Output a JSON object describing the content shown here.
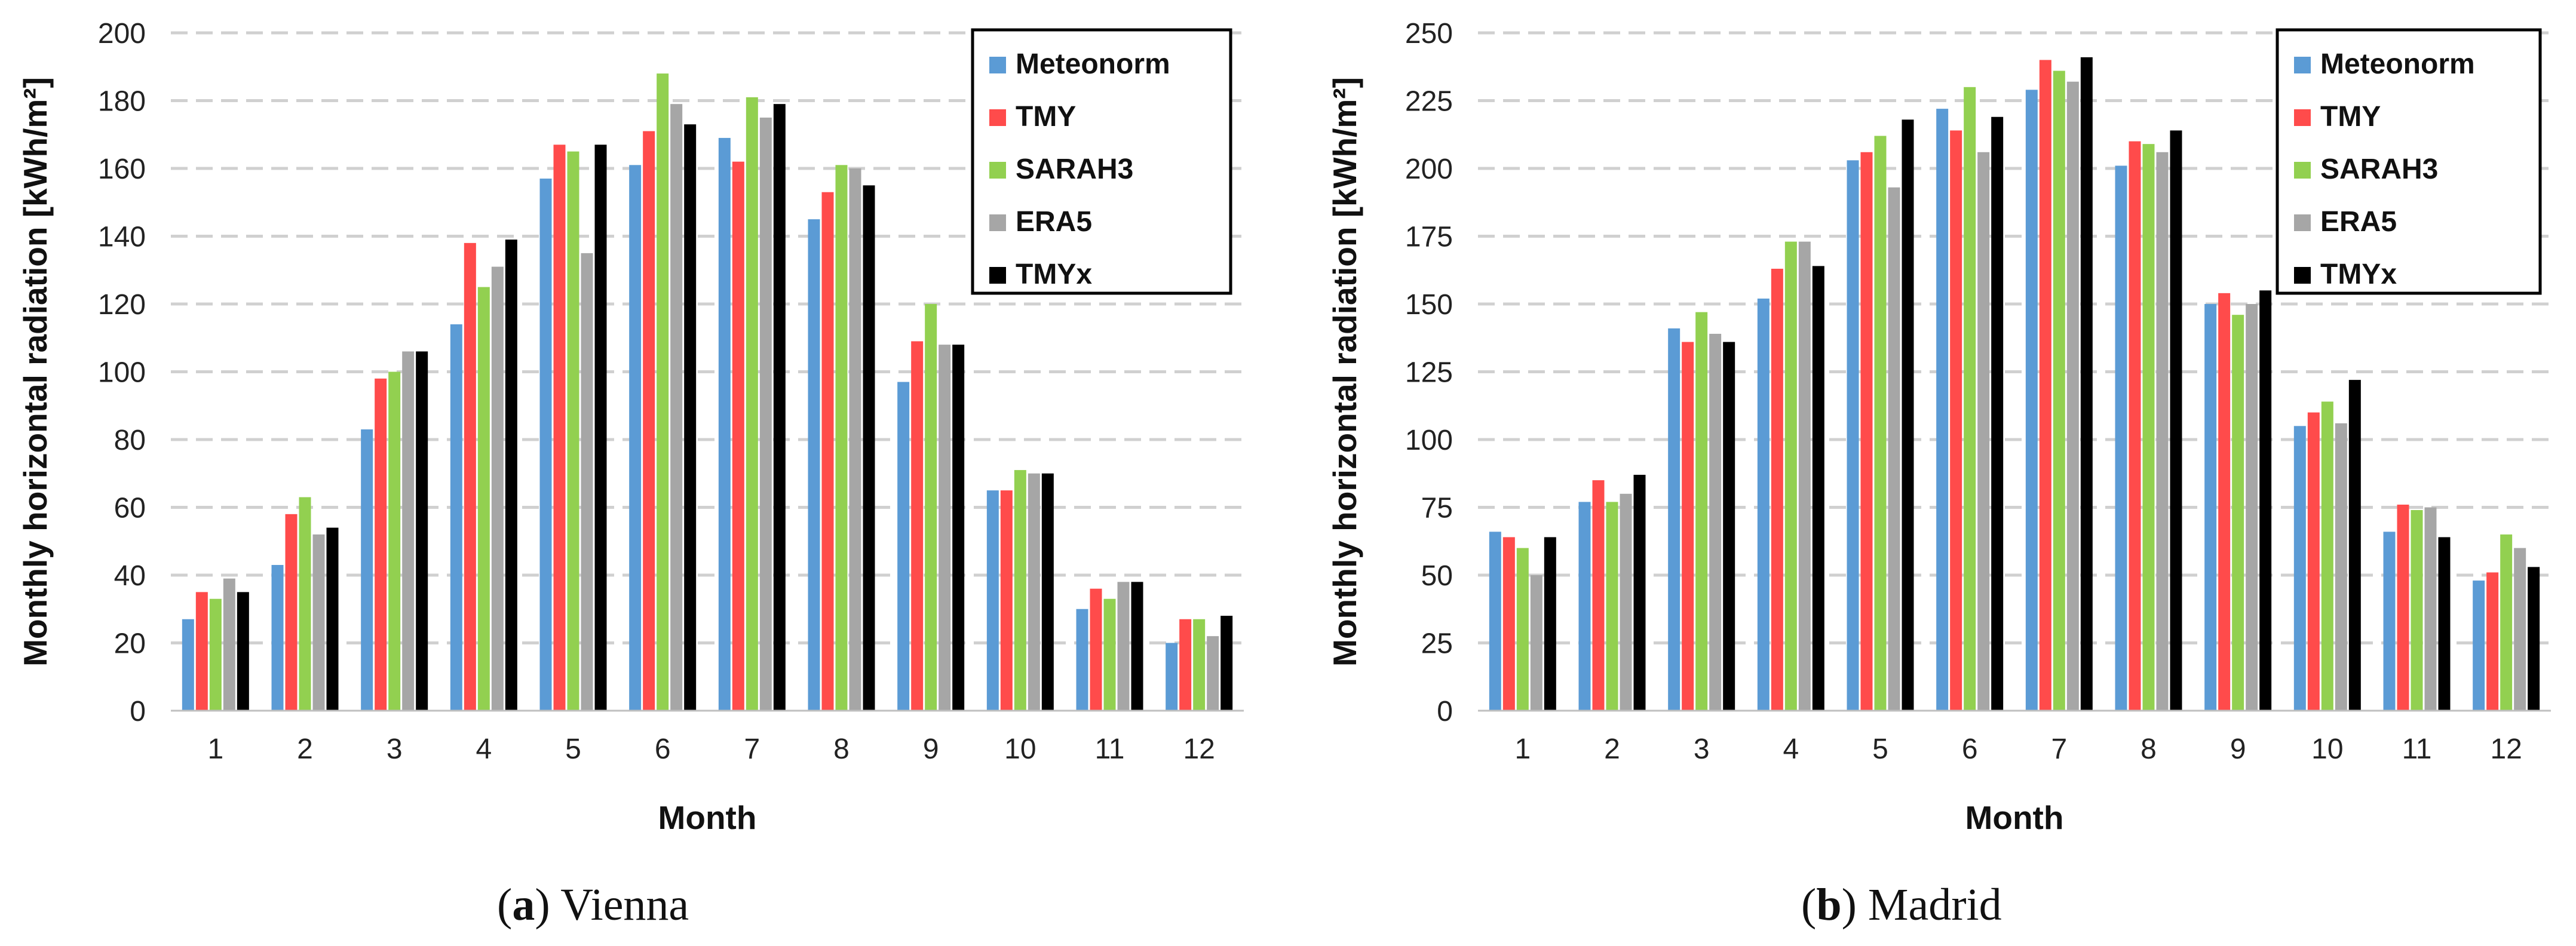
{
  "chart_data": [
    {
      "type": "bar",
      "panel": "a",
      "city": "Vienna",
      "xlabel": "Month",
      "ylabel": "Monthly horizontal radiation [kWh/m²]",
      "ylim": [
        0,
        200
      ],
      "yticks": [
        0,
        20,
        40,
        60,
        80,
        100,
        120,
        140,
        160,
        180,
        200
      ],
      "categories": [
        "1",
        "2",
        "3",
        "4",
        "5",
        "6",
        "7",
        "8",
        "9",
        "10",
        "11",
        "12"
      ],
      "legend_position": "top-right",
      "grid": "horizontal dashed",
      "series": [
        {
          "name": "Meteonorm",
          "color": "#5b9bd5",
          "values": [
            27,
            43,
            83,
            114,
            157,
            161,
            169,
            145,
            97,
            65,
            30,
            20
          ]
        },
        {
          "name": "TMY",
          "color": "#ff4b4b",
          "values": [
            35,
            58,
            98,
            138,
            167,
            171,
            162,
            153,
            109,
            65,
            36,
            27
          ]
        },
        {
          "name": "SARAH3",
          "color": "#92d050",
          "values": [
            33,
            63,
            100,
            125,
            165,
            188,
            181,
            161,
            120,
            71,
            33,
            27
          ]
        },
        {
          "name": "ERA5",
          "color": "#a6a6a6",
          "values": [
            39,
            52,
            106,
            131,
            135,
            179,
            175,
            160,
            108,
            70,
            38,
            22
          ]
        },
        {
          "name": "TMYx",
          "color": "#000000",
          "values": [
            35,
            54,
            106,
            139,
            167,
            173,
            179,
            155,
            108,
            70,
            38,
            28
          ]
        }
      ]
    },
    {
      "type": "bar",
      "panel": "b",
      "city": "Madrid",
      "xlabel": "Month",
      "ylabel": "Monthly horizontal radiation [kWh/m²]",
      "ylim": [
        0,
        250
      ],
      "yticks": [
        0,
        25,
        50,
        75,
        100,
        125,
        150,
        175,
        200,
        225,
        250
      ],
      "categories": [
        "1",
        "2",
        "3",
        "4",
        "5",
        "6",
        "7",
        "8",
        "9",
        "10",
        "11",
        "12"
      ],
      "legend_position": "top-right",
      "grid": "horizontal dashed",
      "series": [
        {
          "name": "Meteonorm",
          "color": "#5b9bd5",
          "values": [
            66,
            77,
            141,
            152,
            203,
            222,
            229,
            201,
            150,
            105,
            66,
            48
          ]
        },
        {
          "name": "TMY",
          "color": "#ff4b4b",
          "values": [
            64,
            85,
            136,
            163,
            206,
            214,
            240,
            210,
            154,
            110,
            76,
            51
          ]
        },
        {
          "name": "SARAH3",
          "color": "#92d050",
          "values": [
            60,
            77,
            147,
            173,
            212,
            230,
            236,
            209,
            146,
            114,
            74,
            65
          ]
        },
        {
          "name": "ERA5",
          "color": "#a6a6a6",
          "values": [
            50,
            80,
            139,
            173,
            193,
            206,
            232,
            206,
            150,
            106,
            75,
            60
          ]
        },
        {
          "name": "TMYx",
          "color": "#000000",
          "values": [
            64,
            87,
            136,
            164,
            218,
            219,
            241,
            214,
            155,
            122,
            64,
            53
          ]
        }
      ]
    }
  ],
  "captions": [
    {
      "label": "(a)",
      "city": "Vienna"
    },
    {
      "label": "(b)",
      "city": "Madrid"
    }
  ]
}
